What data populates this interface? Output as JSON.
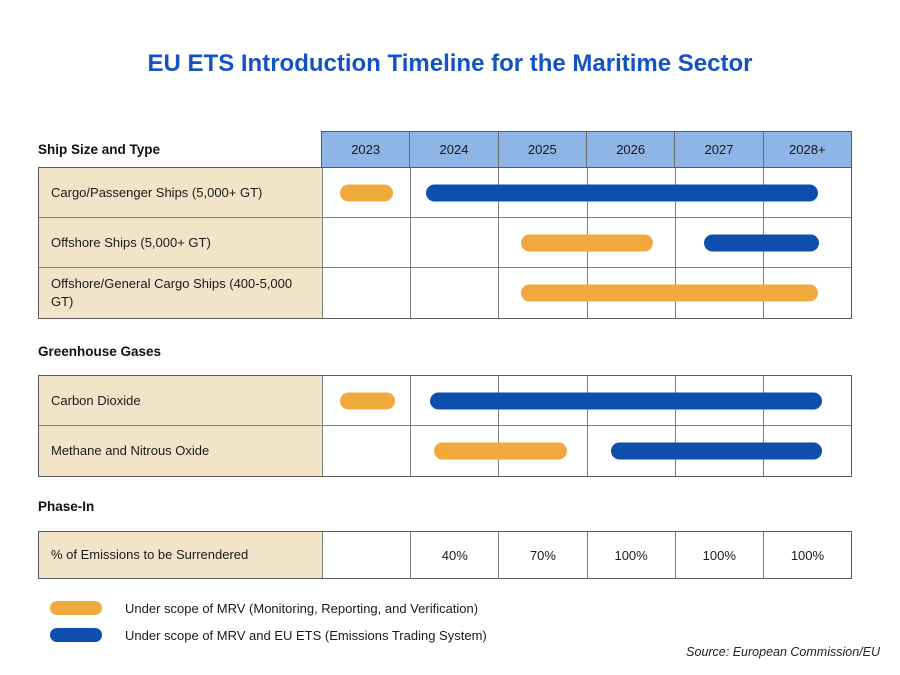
{
  "title": "EU ETS Introduction Timeline for the Maritime Sector",
  "source": "Source: European Commission/EU",
  "colors": {
    "title_blue": "#1453C5",
    "header_blue": "#8FB4E6",
    "label_beige": "#F2E4C8",
    "mrv_orange": "#F0A93C",
    "mrv_ets_blue": "#0E4FAE",
    "border_gray": "#7f7f7f"
  },
  "years": [
    "2023",
    "2024",
    "2025",
    "2026",
    "2027",
    "2028+"
  ],
  "sections": [
    {
      "label": "Ship Size and Type",
      "rows": [
        {
          "label": "Cargo/Passenger Ships (5,000+ GT)",
          "bars": [
            {
              "type": "mrv",
              "span": "2023",
              "from": 0.2,
              "to": 0.8
            },
            {
              "type": "mrv_ets",
              "span": "2024-2028+",
              "from": 1.18,
              "to": 5.6
            }
          ]
        },
        {
          "label": "Offshore Ships (5,000+ GT)",
          "bars": [
            {
              "type": "mrv",
              "span": "2025-2026",
              "from": 2.25,
              "to": 3.74
            },
            {
              "type": "mrv_ets",
              "span": "2027-2028+",
              "from": 4.32,
              "to": 5.62
            }
          ]
        },
        {
          "label": "Offshore/General Cargo Ships (400-5,000 GT)",
          "bars": [
            {
              "type": "mrv",
              "span": "2025-2028+",
              "from": 2.25,
              "to": 5.6
            }
          ]
        }
      ]
    },
    {
      "label": "Greenhouse Gases",
      "rows": [
        {
          "label": "Carbon Dioxide",
          "bars": [
            {
              "type": "mrv",
              "span": "2023",
              "from": 0.2,
              "to": 0.82
            },
            {
              "type": "mrv_ets",
              "span": "2024-2028+",
              "from": 1.22,
              "to": 5.65
            }
          ]
        },
        {
          "label": "Methane and Nitrous Oxide",
          "bars": [
            {
              "type": "mrv",
              "span": "2024-2025",
              "from": 1.27,
              "to": 2.77
            },
            {
              "type": "mrv_ets",
              "span": "2026-2028+",
              "from": 3.27,
              "to": 5.65
            }
          ]
        }
      ]
    },
    {
      "label": "Phase-In",
      "rows": [
        {
          "label": "% of Emissions to be Surrendered",
          "cells": [
            "",
            "40%",
            "70%",
            "100%",
            "100%",
            "100%"
          ]
        }
      ]
    }
  ],
  "legend": [
    {
      "type": "mrv",
      "label": "Under scope of MRV (Monitoring, Reporting, and Verification)"
    },
    {
      "type": "mrv_ets",
      "label": "Under scope of MRV and EU ETS (Emissions Trading System)"
    }
  ],
  "chart_data": {
    "type": "table",
    "title": "EU ETS Introduction Timeline for the Maritime Sector",
    "x": [
      "2023",
      "2024",
      "2025",
      "2026",
      "2027",
      "2028+"
    ],
    "legend_position": "bottom-left",
    "groups": [
      {
        "name": "Ship Size and Type",
        "rows": [
          {
            "label": "Cargo/Passenger Ships (5,000+ GT)",
            "mrv_years": "2023",
            "mrv_and_eu_ets_years": "2024-2028+"
          },
          {
            "label": "Offshore Ships (5,000+ GT)",
            "mrv_years": "2025-2026",
            "mrv_and_eu_ets_years": "2027-2028+"
          },
          {
            "label": "Offshore/General Cargo Ships (400-5,000 GT)",
            "mrv_years": "2025-2028+",
            "mrv_and_eu_ets_years": ""
          }
        ]
      },
      {
        "name": "Greenhouse Gases",
        "rows": [
          {
            "label": "Carbon Dioxide",
            "mrv_years": "2023",
            "mrv_and_eu_ets_years": "2024-2028+"
          },
          {
            "label": "Methane and Nitrous Oxide",
            "mrv_years": "2024-2025",
            "mrv_and_eu_ets_years": "2026-2028+"
          }
        ]
      },
      {
        "name": "Phase-In",
        "rows": [
          {
            "label": "% of Emissions to be Surrendered",
            "values_by_year": {
              "2023": "",
              "2024": "40%",
              "2025": "70%",
              "2026": "100%",
              "2027": "100%",
              "2028+": "100%"
            }
          }
        ]
      }
    ]
  }
}
